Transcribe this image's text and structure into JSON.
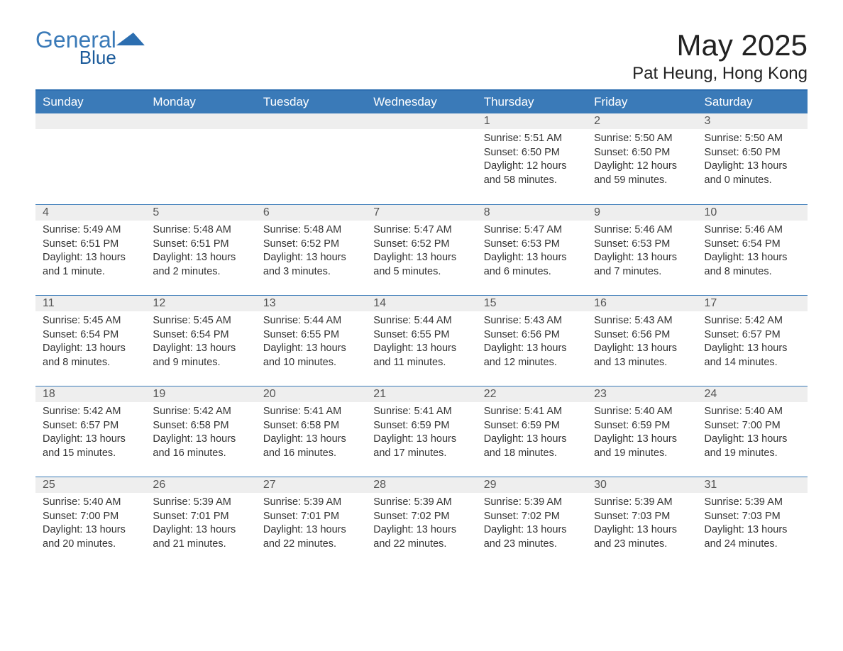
{
  "logo": {
    "text1": "General",
    "text2": "Blue"
  },
  "title": "May 2025",
  "location": "Pat Heung, Hong Kong",
  "colors": {
    "header_bg": "#3a7ab8",
    "header_border": "#2c6eb0",
    "daynum_bg": "#eeeeee",
    "text": "#333333",
    "logo_light": "#3a7ab8",
    "logo_dark": "#1a5a9a"
  },
  "day_headers": [
    "Sunday",
    "Monday",
    "Tuesday",
    "Wednesday",
    "Thursday",
    "Friday",
    "Saturday"
  ],
  "weeks": [
    [
      null,
      null,
      null,
      null,
      {
        "n": "1",
        "sunrise": "5:51 AM",
        "sunset": "6:50 PM",
        "daylight": "12 hours and 58 minutes."
      },
      {
        "n": "2",
        "sunrise": "5:50 AM",
        "sunset": "6:50 PM",
        "daylight": "12 hours and 59 minutes."
      },
      {
        "n": "3",
        "sunrise": "5:50 AM",
        "sunset": "6:50 PM",
        "daylight": "13 hours and 0 minutes."
      }
    ],
    [
      {
        "n": "4",
        "sunrise": "5:49 AM",
        "sunset": "6:51 PM",
        "daylight": "13 hours and 1 minute."
      },
      {
        "n": "5",
        "sunrise": "5:48 AM",
        "sunset": "6:51 PM",
        "daylight": "13 hours and 2 minutes."
      },
      {
        "n": "6",
        "sunrise": "5:48 AM",
        "sunset": "6:52 PM",
        "daylight": "13 hours and 3 minutes."
      },
      {
        "n": "7",
        "sunrise": "5:47 AM",
        "sunset": "6:52 PM",
        "daylight": "13 hours and 5 minutes."
      },
      {
        "n": "8",
        "sunrise": "5:47 AM",
        "sunset": "6:53 PM",
        "daylight": "13 hours and 6 minutes."
      },
      {
        "n": "9",
        "sunrise": "5:46 AM",
        "sunset": "6:53 PM",
        "daylight": "13 hours and 7 minutes."
      },
      {
        "n": "10",
        "sunrise": "5:46 AM",
        "sunset": "6:54 PM",
        "daylight": "13 hours and 8 minutes."
      }
    ],
    [
      {
        "n": "11",
        "sunrise": "5:45 AM",
        "sunset": "6:54 PM",
        "daylight": "13 hours and 8 minutes."
      },
      {
        "n": "12",
        "sunrise": "5:45 AM",
        "sunset": "6:54 PM",
        "daylight": "13 hours and 9 minutes."
      },
      {
        "n": "13",
        "sunrise": "5:44 AM",
        "sunset": "6:55 PM",
        "daylight": "13 hours and 10 minutes."
      },
      {
        "n": "14",
        "sunrise": "5:44 AM",
        "sunset": "6:55 PM",
        "daylight": "13 hours and 11 minutes."
      },
      {
        "n": "15",
        "sunrise": "5:43 AM",
        "sunset": "6:56 PM",
        "daylight": "13 hours and 12 minutes."
      },
      {
        "n": "16",
        "sunrise": "5:43 AM",
        "sunset": "6:56 PM",
        "daylight": "13 hours and 13 minutes."
      },
      {
        "n": "17",
        "sunrise": "5:42 AM",
        "sunset": "6:57 PM",
        "daylight": "13 hours and 14 minutes."
      }
    ],
    [
      {
        "n": "18",
        "sunrise": "5:42 AM",
        "sunset": "6:57 PM",
        "daylight": "13 hours and 15 minutes."
      },
      {
        "n": "19",
        "sunrise": "5:42 AM",
        "sunset": "6:58 PM",
        "daylight": "13 hours and 16 minutes."
      },
      {
        "n": "20",
        "sunrise": "5:41 AM",
        "sunset": "6:58 PM",
        "daylight": "13 hours and 16 minutes."
      },
      {
        "n": "21",
        "sunrise": "5:41 AM",
        "sunset": "6:59 PM",
        "daylight": "13 hours and 17 minutes."
      },
      {
        "n": "22",
        "sunrise": "5:41 AM",
        "sunset": "6:59 PM",
        "daylight": "13 hours and 18 minutes."
      },
      {
        "n": "23",
        "sunrise": "5:40 AM",
        "sunset": "6:59 PM",
        "daylight": "13 hours and 19 minutes."
      },
      {
        "n": "24",
        "sunrise": "5:40 AM",
        "sunset": "7:00 PM",
        "daylight": "13 hours and 19 minutes."
      }
    ],
    [
      {
        "n": "25",
        "sunrise": "5:40 AM",
        "sunset": "7:00 PM",
        "daylight": "13 hours and 20 minutes."
      },
      {
        "n": "26",
        "sunrise": "5:39 AM",
        "sunset": "7:01 PM",
        "daylight": "13 hours and 21 minutes."
      },
      {
        "n": "27",
        "sunrise": "5:39 AM",
        "sunset": "7:01 PM",
        "daylight": "13 hours and 22 minutes."
      },
      {
        "n": "28",
        "sunrise": "5:39 AM",
        "sunset": "7:02 PM",
        "daylight": "13 hours and 22 minutes."
      },
      {
        "n": "29",
        "sunrise": "5:39 AM",
        "sunset": "7:02 PM",
        "daylight": "13 hours and 23 minutes."
      },
      {
        "n": "30",
        "sunrise": "5:39 AM",
        "sunset": "7:03 PM",
        "daylight": "13 hours and 23 minutes."
      },
      {
        "n": "31",
        "sunrise": "5:39 AM",
        "sunset": "7:03 PM",
        "daylight": "13 hours and 24 minutes."
      }
    ]
  ],
  "labels": {
    "sunrise": "Sunrise: ",
    "sunset": "Sunset: ",
    "daylight": "Daylight: "
  }
}
